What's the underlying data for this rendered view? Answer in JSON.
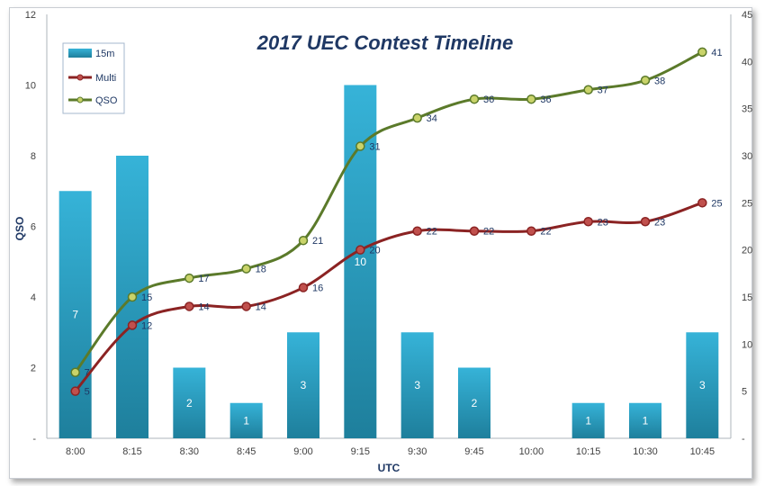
{
  "chart_data": {
    "type": "bar",
    "title": "2017 UEC Contest Timeline",
    "xlabel": "UTC",
    "ylabel": "QSO",
    "ylim": [
      0,
      12
    ],
    "y2lim": [
      0,
      45
    ],
    "grid": false,
    "legend_position": "top-left",
    "categories": [
      "8:00",
      "8:15",
      "8:30",
      "8:45",
      "9:00",
      "9:15",
      "9:30",
      "9:45",
      "10:00",
      "10:15",
      "10:30",
      "10:45"
    ],
    "y_ticks": [
      "-",
      "2",
      "4",
      "6",
      "8",
      "10",
      "12"
    ],
    "y2_ticks": [
      "-",
      "5",
      "10",
      "15",
      "20",
      "25",
      "30",
      "35",
      "40",
      "45"
    ],
    "series": [
      {
        "name": "15m",
        "type": "bar",
        "axis": "left",
        "color": "#2ea8cc",
        "values": [
          7,
          8,
          2,
          1,
          3,
          10,
          3,
          2,
          0,
          1,
          1,
          3
        ],
        "labels": [
          "7",
          "8",
          "2",
          "1",
          "3",
          "10",
          "3",
          "2",
          "",
          "1",
          "1",
          "3"
        ]
      },
      {
        "name": "Multi",
        "type": "line",
        "axis": "right",
        "color": "#8b2323",
        "values": [
          5,
          12,
          14,
          14,
          16,
          20,
          22,
          22,
          22,
          23,
          23,
          25
        ]
      },
      {
        "name": "QSO",
        "type": "line",
        "axis": "right",
        "color": "#5b7a2a",
        "values": [
          7,
          15,
          17,
          18,
          21,
          31,
          34,
          36,
          36,
          37,
          38,
          41
        ]
      }
    ]
  }
}
